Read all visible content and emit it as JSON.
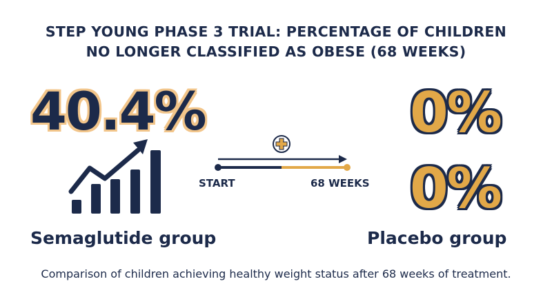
{
  "title_line1": "STEP YOUNG PHASE 3 TRIAL: PERCENTAGE OF CHILDREN",
  "title_line2": "NO LONGER CLASSIFIED AS OBESE (68 WEEKS)",
  "caption": "Comparison of children achieving healthy weight status after 68 weeks of treatment.",
  "timeline": {
    "start_label": "START",
    "end_label": "68 WEEKS"
  },
  "icons": [
    "bar-chart-growth-icon",
    "medical-cross-icon"
  ],
  "colors": {
    "navy": "#1c2a4a",
    "gold": "#e2a848",
    "light_gold": "#f2c58a"
  },
  "chart_data": {
    "type": "bar",
    "categories": [
      "Semaglutide group",
      "Placebo group",
      "Placebo group"
    ],
    "values": [
      40.4,
      0,
      0
    ],
    "value_labels": [
      "40.4%",
      "0%",
      "0%"
    ],
    "unit": "%"
  }
}
